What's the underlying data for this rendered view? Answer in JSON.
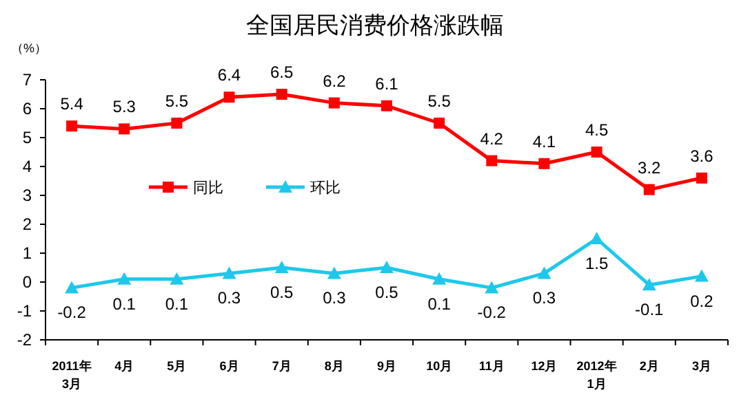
{
  "chart_data": {
    "type": "line",
    "title": "全国居民消费价格涨跌幅",
    "ylabel": "（%）",
    "categories": [
      "2011年\n3月",
      "4月",
      "5月",
      "6月",
      "7月",
      "8月",
      "9月",
      "10月",
      "11月",
      "12月",
      "2012年\n1月",
      "2月",
      "3月"
    ],
    "series": [
      {
        "name": "同比",
        "color": "#ff0000",
        "marker": "square",
        "values": [
          5.4,
          5.3,
          5.5,
          6.4,
          6.5,
          6.2,
          6.1,
          5.5,
          4.2,
          4.1,
          4.5,
          3.2,
          3.6
        ]
      },
      {
        "name": "环比",
        "color": "#1ec8ea",
        "marker": "triangle",
        "values": [
          -0.2,
          0.1,
          0.1,
          0.3,
          0.5,
          0.3,
          0.5,
          0.1,
          -0.2,
          0.3,
          1.5,
          -0.1,
          0.2
        ]
      }
    ],
    "ylim": [
      -2,
      7
    ],
    "yticks": [
      -2,
      -1,
      0,
      1,
      2,
      3,
      4,
      5,
      6,
      7
    ],
    "data_labels": true,
    "legend": "left",
    "grid": false
  }
}
